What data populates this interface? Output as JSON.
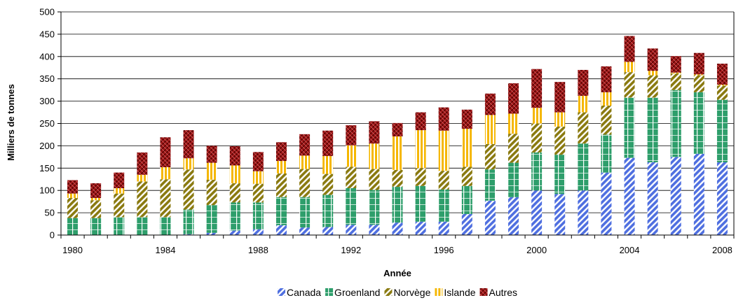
{
  "chart_data": {
    "type": "bar",
    "stacked": true,
    "xlabel": "Année",
    "ylabel": "Milliers de tonnes",
    "ylim": [
      0,
      500
    ],
    "yticks": [
      0,
      50,
      100,
      150,
      200,
      250,
      300,
      350,
      400,
      450,
      500
    ],
    "grid": "horizontal",
    "legend_placement": "bottom",
    "categories": [
      "1980",
      "1981",
      "1982",
      "1983",
      "1984",
      "1985",
      "1986",
      "1987",
      "1988",
      "1989",
      "1990",
      "1991",
      "1992",
      "1993",
      "1994",
      "1995",
      "1996",
      "1997",
      "1998",
      "1999",
      "2000",
      "2001",
      "2002",
      "2003",
      "2004",
      "2005",
      "2006",
      "2007",
      "2008"
    ],
    "xtick_labels": [
      "1980",
      "1984",
      "1988",
      "1992",
      "1996",
      "2000",
      "2004",
      "2008"
    ],
    "series": [
      {
        "name": "Canada",
        "color": "#4f6fe0",
        "pattern": "diagonal-stripes",
        "values": [
          0,
          0,
          0,
          0,
          0,
          2,
          5,
          10,
          13,
          22,
          17,
          18,
          23,
          23,
          28,
          30,
          30,
          47,
          77,
          85,
          100,
          92,
          100,
          140,
          173,
          163,
          175,
          182,
          163
        ]
      },
      {
        "name": "Groenland",
        "color": "#2e9e6b",
        "pattern": "vertical-bands",
        "values": [
          38,
          38,
          40,
          40,
          40,
          55,
          62,
          63,
          60,
          63,
          68,
          72,
          82,
          78,
          80,
          80,
          72,
          63,
          70,
          77,
          85,
          88,
          105,
          85,
          135,
          145,
          150,
          138,
          140
        ]
      },
      {
        "name": "Norvège",
        "color": "#8a7a10",
        "pattern": "diagonal-stripes",
        "values": [
          45,
          40,
          53,
          80,
          85,
          90,
          57,
          43,
          42,
          53,
          63,
          47,
          48,
          47,
          38,
          40,
          42,
          43,
          57,
          65,
          65,
          63,
          70,
          65,
          57,
          50,
          37,
          38,
          32
        ]
      },
      {
        "name": "Islande",
        "color": "#f5b700",
        "pattern": "vertical-stripes",
        "values": [
          10,
          5,
          12,
          15,
          27,
          25,
          38,
          40,
          28,
          28,
          30,
          40,
          48,
          57,
          75,
          85,
          90,
          85,
          65,
          45,
          35,
          32,
          37,
          30,
          23,
          10,
          2,
          2,
          2
        ]
      },
      {
        "name": "Autres",
        "color": "#a01818",
        "pattern": "crosshatch",
        "values": [
          30,
          33,
          35,
          50,
          67,
          63,
          38,
          43,
          43,
          42,
          48,
          57,
          45,
          50,
          30,
          40,
          52,
          43,
          48,
          68,
          87,
          68,
          58,
          58,
          58,
          50,
          37,
          48,
          47
        ]
      }
    ]
  }
}
